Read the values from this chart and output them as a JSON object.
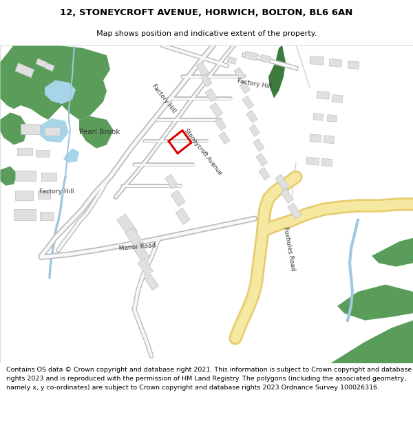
{
  "title": "12, STONEYCROFT AVENUE, HORWICH, BOLTON, BL6 6AN",
  "subtitle": "Map shows position and indicative extent of the property.",
  "footer": "Contains OS data © Crown copyright and database right 2021. This information is subject to Crown copyright and database rights 2023 and is reproduced with the permission of HM Land Registry. The polygons (including the associated geometry, namely x, y co-ordinates) are subject to Crown copyright and database rights 2023 Ordnance Survey 100026316.",
  "bg_color": "#ffffff",
  "map_bg": "#ffffff",
  "green_color": "#5a9c5a",
  "water_color": "#a8d4e8",
  "road_yellow_outer": "#e8cc70",
  "road_yellow_inner": "#f5e8a0",
  "road_outline": "#bbbbbb",
  "road_white": "#f0f0f0",
  "building_color": "#e0e0e0",
  "building_edge": "#c0c0c0",
  "highlight_color": "#dd0000",
  "text_color": "#333333",
  "title_color": "#000000",
  "stream_color": "#a0c8e0"
}
